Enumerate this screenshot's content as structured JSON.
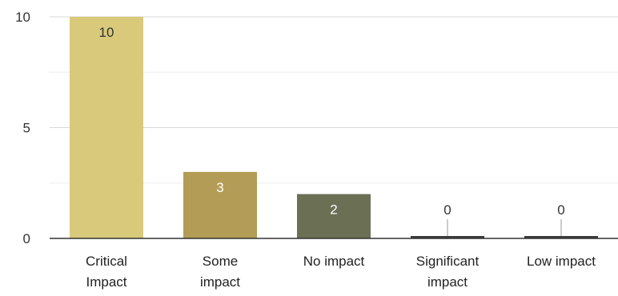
{
  "chart_data": {
    "type": "bar",
    "categories": [
      [
        "Critical",
        "Impact"
      ],
      [
        "Some",
        "impact"
      ],
      [
        "No impact"
      ],
      [
        "Significant",
        "impact"
      ],
      [
        "Low impact"
      ]
    ],
    "values": [
      10,
      3,
      2,
      0,
      0
    ],
    "data_labels": [
      "10",
      "3",
      "2",
      "0",
      "0"
    ],
    "bar_colors": [
      "#d9c97a",
      "#b39d56",
      "#6b7055",
      "#3d3d3d",
      "#3d3d3d"
    ],
    "data_label_colors": [
      "#333333",
      "#ffffff",
      "#ffffff",
      "#333333",
      "#333333"
    ],
    "y_ticks": [
      0,
      5,
      10
    ],
    "y_tick_labels": [
      "0",
      "5",
      "10"
    ],
    "ylim": [
      0,
      10
    ],
    "minor_gridlines": true,
    "title": "",
    "xlabel": "",
    "ylabel": ""
  }
}
